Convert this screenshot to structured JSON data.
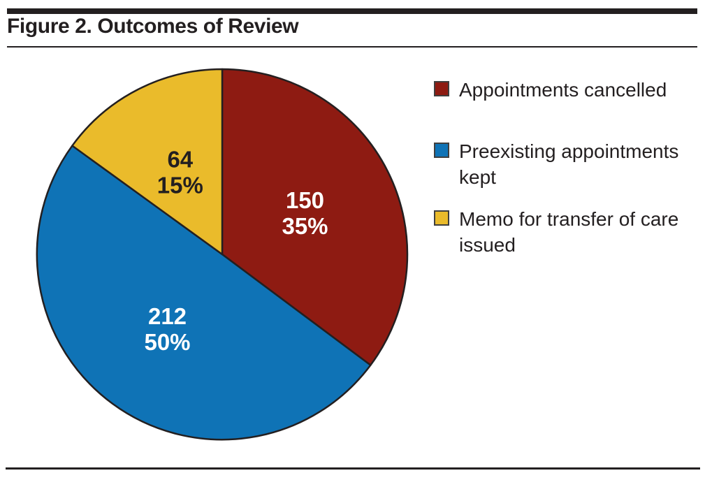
{
  "figure": {
    "title": "Figure 2. Outcomes of Review"
  },
  "chart_data": {
    "type": "pie",
    "title": "Figure 2. Outcomes of Review",
    "start_angle": "top",
    "direction": "clockwise",
    "legend_position": "right",
    "labels_show": "value and percent inside slices",
    "slice_border_color": "#231f20",
    "slices": [
      {
        "label": "Appointments cancelled",
        "value": 150,
        "pct_label": "35%",
        "color": "#8e1b12",
        "label_color": "#ffffff"
      },
      {
        "label": "Preexisting appointments kept",
        "value": 212,
        "pct_label": "50%",
        "color": "#0f73b6",
        "label_color": "#ffffff"
      },
      {
        "label": "Memo for transfer of care issued",
        "value": 64,
        "pct_label": "15%",
        "color": "#eabb2b",
        "label_color": "#231f20"
      }
    ]
  },
  "colors": {
    "text": "#231f20",
    "rules": "#231f20",
    "legend_swatch_border": "#3f3f3f",
    "background": "#ffffff"
  }
}
